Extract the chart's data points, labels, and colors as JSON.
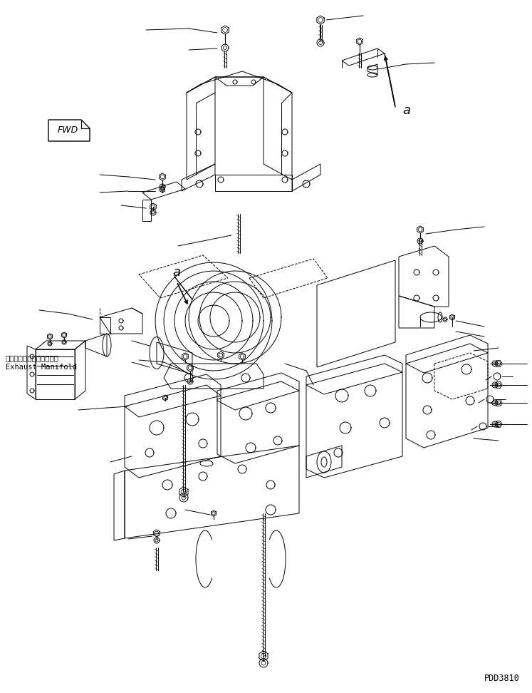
{
  "bg_color": "#ffffff",
  "line_color": "#000000",
  "fig_width": 7.47,
  "fig_height": 9.72,
  "dpi": 100,
  "watermark": "PDD3810",
  "fwd_label": "FWD",
  "exhaust_jp": "エキゾーストマニホールド",
  "exhaust_en": "Exhaust Manifold"
}
